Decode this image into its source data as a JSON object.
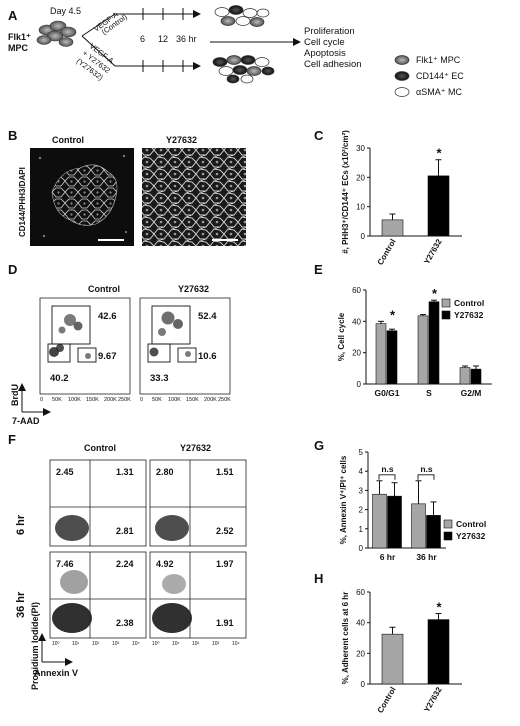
{
  "panels": {
    "A": {
      "letter": "A",
      "day": "Day 4.5",
      "cell_line1": "Flk1⁺",
      "cell_line2": "MPC",
      "top_arm": "VEGF-A",
      "top_arm2": "(Control)",
      "bot_arm1": "VEGF-A",
      "bot_arm2": "+ Y27632",
      "bot_arm3": "(Y27632)",
      "times": [
        "6",
        "12",
        "36 hr"
      ],
      "assays": [
        "Proliferation",
        "Cell cycle",
        "Apoptosis",
        "Cell adhesion"
      ],
      "legend": [
        "Flk1⁺ MPC",
        "CD144⁺ EC",
        "αSMA⁺ MC"
      ]
    },
    "B": {
      "letter": "B",
      "col1": "Control",
      "col2": "Y27632",
      "ylabel": "CD144/PHH3/DAPI"
    },
    "D": {
      "letter": "D",
      "col1": "Control",
      "col2": "Y27632",
      "ylabel": "BrdU",
      "xlabel": "7-AAD",
      "x_ticks": [
        "0",
        "50K",
        "100K",
        "150K",
        "200K",
        "250K"
      ],
      "control": {
        "brdu_pos": "42.6",
        "g2m": "9.67",
        "g0g1": "40.2"
      },
      "y27632": {
        "brdu_pos": "52.4",
        "g2m": "10.6",
        "g0g1": "33.3"
      }
    },
    "F": {
      "letter": "F",
      "col1": "Control",
      "col2": "Y27632",
      "row1": "6 hr",
      "row2": "36 hr",
      "ylabel": "Propidium Iodide(PI)",
      "xlabel": "Annexin V",
      "axis_ticks": [
        "10⁰",
        "10¹",
        "10²",
        "10³",
        "10⁴"
      ],
      "control_6hr": [
        "2.45",
        "1.31",
        "2.81"
      ],
      "y27632_6hr": [
        "2.80",
        "1.51",
        "2.52"
      ],
      "control_36hr": [
        "7.46",
        "2.24",
        "2.38"
      ],
      "y27632_36hr": [
        "4.92",
        "1.97",
        "1.91"
      ]
    },
    "C": {
      "letter": "C"
    },
    "E": {
      "letter": "E"
    },
    "G": {
      "letter": "G"
    },
    "H": {
      "letter": "H"
    }
  },
  "chart_data": [
    {
      "panel": "C",
      "type": "bar",
      "categories": [
        "Control",
        "Y27632"
      ],
      "values": [
        5.5,
        20.5
      ],
      "errors": [
        2.0,
        5.5
      ],
      "colors": [
        "#a6a6a6",
        "#000000"
      ],
      "ylabel": "#, PHH3⁺/CD144⁺ ECs (x10²/cm²)",
      "ylim": [
        0,
        30
      ],
      "yticks": [
        "0",
        "10",
        "20",
        "30"
      ],
      "significance": [
        "",
        "*"
      ]
    },
    {
      "panel": "E",
      "type": "bar",
      "categories": [
        "G0/G1",
        "S",
        "G2/M"
      ],
      "series": [
        {
          "name": "Control",
          "values": [
            38.5,
            43.5,
            10.5
          ],
          "errors": [
            1.5,
            0.8,
            1.0
          ],
          "color": "#a6a6a6"
        },
        {
          "name": "Y27632",
          "values": [
            34,
            52.5,
            9.5
          ],
          "errors": [
            1.0,
            1.0,
            2.0
          ],
          "color": "#000000"
        }
      ],
      "ylabel": "%, Cell cycle",
      "ylim": [
        0,
        60
      ],
      "yticks": [
        "0",
        "20",
        "40",
        "60"
      ],
      "significance": [
        "*",
        "*",
        ""
      ],
      "legend_position": "top-right"
    },
    {
      "panel": "G",
      "type": "bar",
      "categories": [
        "6 hr",
        "36 hr"
      ],
      "series": [
        {
          "name": "Control",
          "values": [
            2.8,
            2.3
          ],
          "errors": [
            0.7,
            1.2
          ],
          "color": "#a6a6a6"
        },
        {
          "name": "Y27632",
          "values": [
            2.7,
            1.7
          ],
          "errors": [
            0.7,
            0.7
          ],
          "color": "#000000"
        }
      ],
      "ylabel": "%, Annexin V⁺/PI⁺ cells",
      "ylim": [
        0,
        5
      ],
      "yticks": [
        "0",
        "1",
        "2",
        "3",
        "4",
        "5"
      ],
      "significance": [
        "n.s",
        "n.s"
      ],
      "legend_position": "right"
    },
    {
      "panel": "H",
      "type": "bar",
      "categories": [
        "Control",
        "Y27632"
      ],
      "values": [
        32.5,
        42
      ],
      "errors": [
        4.5,
        4.0
      ],
      "colors": [
        "#a6a6a6",
        "#000000"
      ],
      "ylabel": "%, Adherent cells at 6 hr",
      "ylim": [
        0,
        60
      ],
      "yticks": [
        "0",
        "20",
        "40",
        "60"
      ],
      "significance": [
        "",
        "*"
      ]
    }
  ]
}
